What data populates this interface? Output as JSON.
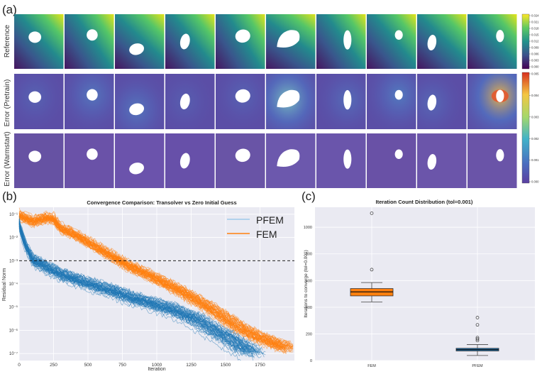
{
  "panel_labels": {
    "a": "(a)",
    "b": "(b)",
    "c": "(c)"
  },
  "heatmaps": {
    "row_labels": [
      "Reference",
      "Error (Pretrain)",
      "Error (Warmstart)"
    ],
    "colorbar_top": {
      "colormap": "viridis",
      "ticks": [
        "0.000",
        "0.003",
        "0.006",
        "0.009",
        "0.012",
        "0.015",
        "0.018",
        "0.021",
        "0.024"
      ]
    },
    "colorbar_error": {
      "colormap": "jet",
      "ticks": [
        "0.000",
        "0.001",
        "0.002",
        "0.003",
        "0.004",
        "0.005"
      ]
    }
  },
  "chart_data": [
    {
      "type": "line",
      "title": "Convergence Comparison: Transolver vs Zero Initial Guess",
      "xlabel": "Iteration",
      "ylabel": "Residual Norm",
      "xlim": [
        0,
        2000
      ],
      "ylim_log10": [
        -7.3,
        -0.7
      ],
      "x_ticks": [
        0,
        250,
        500,
        750,
        1000,
        1250,
        1500,
        1750
      ],
      "y_ticks": [
        "10⁻¹",
        "10⁻²",
        "10⁻³",
        "10⁻⁴",
        "10⁻⁵",
        "10⁻⁶",
        "10⁻⁷"
      ],
      "y_tick_exponents": [
        -1,
        -2,
        -3,
        -4,
        -5,
        -6,
        -7
      ],
      "reference_line": {
        "y": 0.001,
        "style": "dashed",
        "color": "#000000"
      },
      "legend_position": "top-right",
      "grid": true,
      "series": [
        {
          "name": "PFEM",
          "color": "#1f77b4",
          "runs": 100,
          "x": [
            0,
            25,
            50,
            100,
            200,
            300,
            400,
            500,
            600,
            700,
            800,
            900,
            1000,
            1100,
            1200,
            1300,
            1400,
            1500,
            1600,
            1700
          ],
          "log10_residual": [
            -1.4,
            -2.0,
            -2.4,
            -3.0,
            -3.3,
            -3.6,
            -3.8,
            -4.0,
            -4.2,
            -4.35,
            -4.6,
            -4.75,
            -4.95,
            -5.1,
            -5.35,
            -5.6,
            -6.0,
            -6.3,
            -6.7,
            -7.0
          ]
        },
        {
          "name": "FEM",
          "color": "#ff7f0e",
          "runs": 100,
          "x": [
            0,
            100,
            200,
            250,
            300,
            400,
            500,
            600,
            700,
            800,
            900,
            1000,
            1100,
            1200,
            1300,
            1400,
            1500,
            1600,
            1700,
            1800,
            1900,
            1960
          ],
          "log10_residual": [
            -1.05,
            -1.3,
            -1.15,
            -1.2,
            -1.6,
            -1.85,
            -2.2,
            -2.55,
            -2.9,
            -3.25,
            -3.5,
            -3.8,
            -4.1,
            -4.4,
            -4.75,
            -5.1,
            -5.5,
            -5.9,
            -6.2,
            -6.45,
            -6.65,
            -6.8
          ]
        }
      ]
    },
    {
      "type": "box",
      "title": "Iteration Count Distribution (tol=0.001)",
      "xlabel": "",
      "ylabel": "Iterations to converge (tol=0.001)",
      "ylim": [
        0,
        1150
      ],
      "y_ticks": [
        0,
        200,
        400,
        600,
        800,
        1000
      ],
      "categories": [
        "FEM",
        "PFEM"
      ],
      "boxes": [
        {
          "name": "FEM",
          "color": "#ff7f0e",
          "q1": 485,
          "median": 515,
          "q3": 540,
          "whisker_low": 440,
          "whisker_high": 585,
          "outliers": [
            1105,
            682
          ]
        },
        {
          "name": "PFEM",
          "color": "#1f77b4",
          "q1": 72,
          "median": 82,
          "q3": 92,
          "whisker_low": 38,
          "whisker_high": 120,
          "outliers": [
            322,
            268,
            172,
            162,
            150
          ]
        }
      ]
    }
  ]
}
